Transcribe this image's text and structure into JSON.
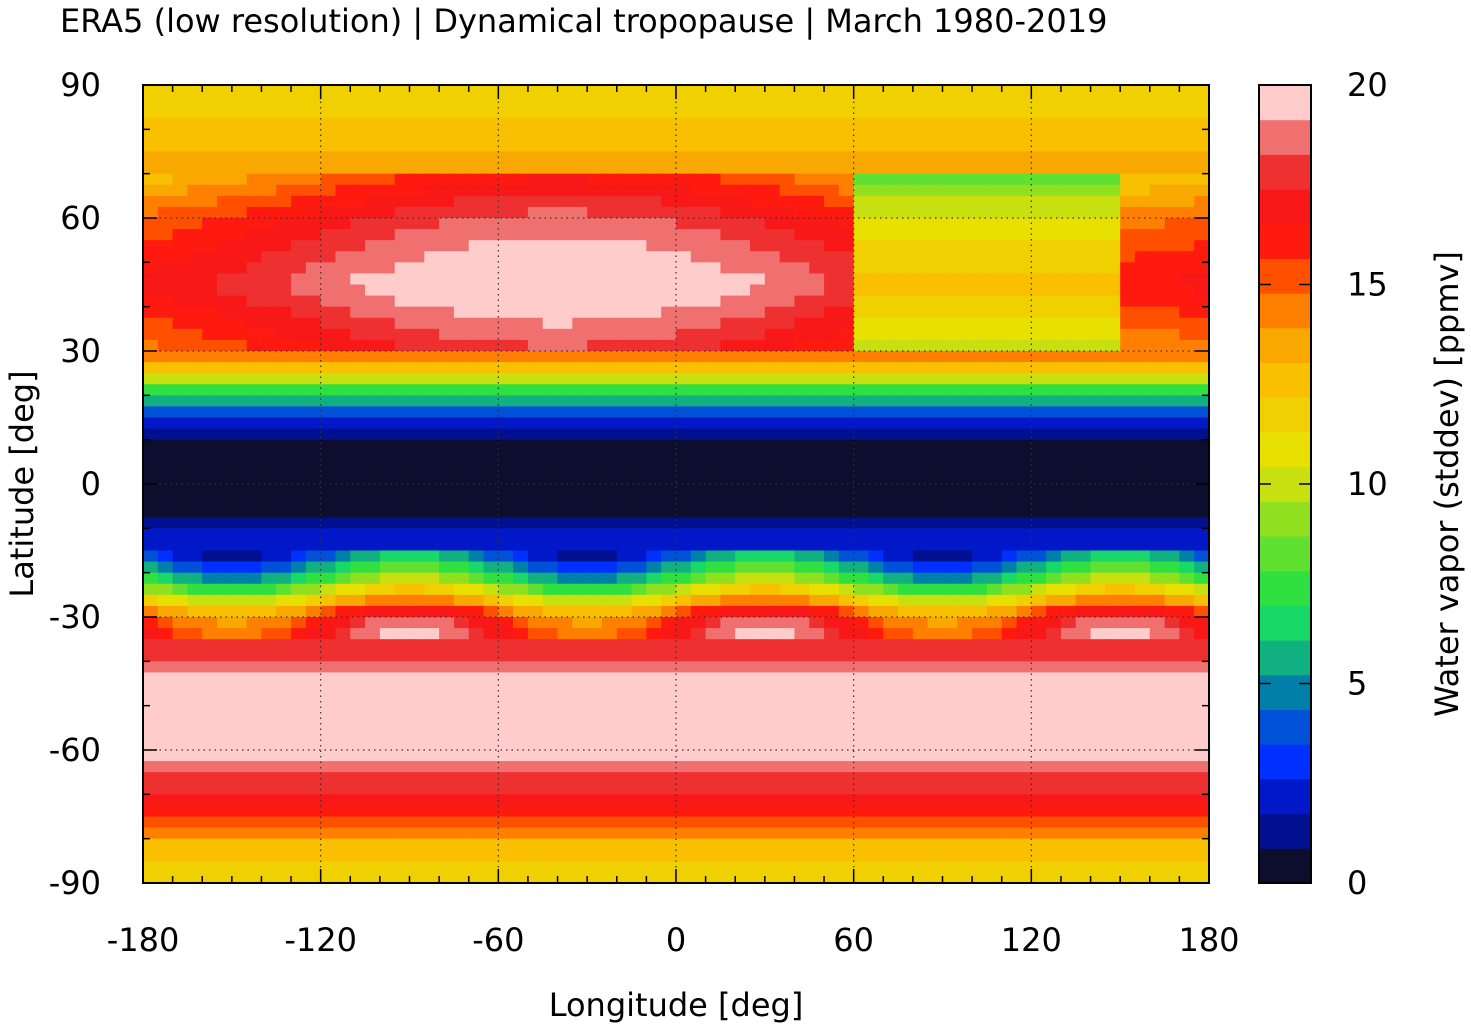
{
  "title": "ERA5 (low resolution) | Dynamical tropopause | March 1980-2019",
  "chart_data": {
    "type": "heatmap",
    "title": "ERA5 (low resolution) | Dynamical tropopause | March 1980-2019",
    "xlabel": "Longitude [deg]",
    "ylabel": "Latitude [deg]",
    "xlim": [
      -180,
      180
    ],
    "ylim": [
      -90,
      90
    ],
    "x_ticks": [
      "-180",
      "-120",
      "-60",
      "0",
      "60",
      "120",
      "180"
    ],
    "y_ticks": [
      "90",
      "60",
      "30",
      "0",
      "-30",
      "-60",
      "-90"
    ],
    "grid": true,
    "colorbar": {
      "label": "Water vapor (stddev) [ppmv]",
      "range": [
        0,
        20
      ],
      "ticks": [
        "0",
        "5",
        "10",
        "15",
        "20"
      ],
      "colors": [
        "#0d0d2e",
        "#00108f",
        "#0018c8",
        "#0030ff",
        "#0050d8",
        "#0080a8",
        "#10b080",
        "#18d868",
        "#30e040",
        "#60e030",
        "#90e020",
        "#c8e010",
        "#e8e000",
        "#f0d000",
        "#f8c000",
        "#f8a800",
        "#ff8000",
        "#ff5000",
        "#ff1a10",
        "#f81818",
        "#ef3030",
        "#f07070",
        "#ffcccc"
      ]
    },
    "latitude_profile": {
      "lat": [
        90,
        75,
        60,
        45,
        30,
        22,
        15,
        8,
        0,
        -8,
        -15,
        -22,
        -30,
        -45,
        -60,
        -72,
        -82,
        -90
      ],
      "value": [
        11.5,
        13,
        16.5,
        18.5,
        16,
        8,
        2.5,
        0.5,
        0.3,
        0.8,
        3,
        8,
        16,
        19.5,
        19.5,
        17,
        12.5,
        11.5
      ]
    }
  }
}
